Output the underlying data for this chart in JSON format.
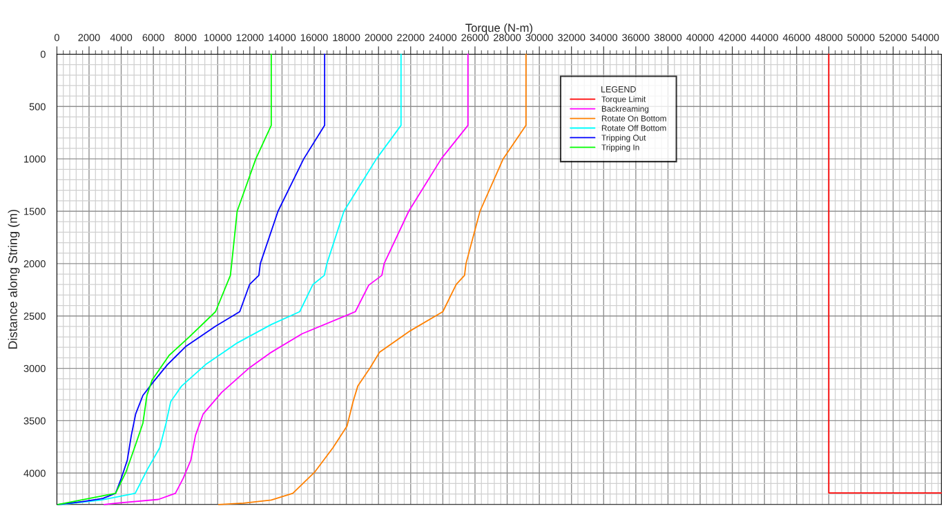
{
  "chart_data": {
    "type": "line",
    "xlabel": "Torque (N-m)",
    "ylabel": "Distance along String (m)",
    "legend_title": "LEGEND",
    "legend": "top right",
    "grid": true,
    "xlim": [
      0,
      55000
    ],
    "xticks": [
      0,
      2000,
      4000,
      6000,
      8000,
      10000,
      12000,
      14000,
      16000,
      18000,
      20000,
      22000,
      24000,
      26000,
      28000,
      30000,
      32000,
      34000,
      36000,
      38000,
      40000,
      42000,
      44000,
      46000,
      48000,
      50000,
      52000,
      54000
    ],
    "ylim": [
      4300,
      0
    ],
    "yticks": [
      0,
      500,
      1000,
      1500,
      2000,
      2500,
      3000,
      3500,
      4000
    ],
    "series": [
      {
        "name": "Torque Limit",
        "color": "#ff0000",
        "x": [
          48000,
          48000,
          55000
        ],
        "values": [
          0,
          4190,
          4190
        ]
      },
      {
        "name": "Backreaming",
        "color": "#ff00ff",
        "x": [
          25560,
          25560,
          23900,
          21880,
          20350,
          20210,
          19390,
          18560,
          15250,
          13330,
          11980,
          10250,
          9100,
          8620,
          8330,
          7850,
          7370,
          6310,
          3710,
          2940
        ],
        "values": [
          0,
          680,
          1000,
          1500,
          2000,
          2112,
          2206,
          2459,
          2670,
          2847,
          2994,
          3229,
          3435,
          3640,
          3876,
          4052,
          4193,
          4252,
          4287,
          4300
        ]
      },
      {
        "name": "Rotate On Bottom",
        "color": "#ff8000",
        "x": [
          29170,
          29170,
          27750,
          26310,
          25440,
          25350,
          24830,
          24000,
          21980,
          20060,
          19480,
          18710,
          18420,
          18040,
          17170,
          16020,
          14670,
          13330,
          11600,
          10060
        ],
        "values": [
          0,
          680,
          1000,
          1500,
          2000,
          2112,
          2200,
          2459,
          2641,
          2847,
          2994,
          3170,
          3317,
          3552,
          3758,
          3993,
          4193,
          4258,
          4287,
          4300
        ]
      },
      {
        "name": "Rotate Off Bottom",
        "color": "#00ffff",
        "x": [
          21400,
          21400,
          19870,
          17850,
          16790,
          16630,
          15920,
          15100,
          13330,
          11210,
          9250,
          7750,
          7080,
          6790,
          6400,
          5630,
          4870,
          2750,
          250
        ],
        "values": [
          0,
          680,
          1000,
          1500,
          2000,
          2112,
          2200,
          2459,
          2582,
          2758,
          2964,
          3170,
          3317,
          3523,
          3758,
          3964,
          4193,
          4258,
          4300
        ]
      },
      {
        "name": "Tripping Out",
        "color": "#0000ff",
        "x": [
          16650,
          16650,
          15350,
          13750,
          12650,
          12560,
          11980,
          11370,
          9870,
          8040,
          6880,
          6020,
          5350,
          4900,
          4630,
          4380,
          4000,
          3650,
          2850,
          1600,
          60
        ],
        "values": [
          0,
          680,
          1000,
          1500,
          2000,
          2112,
          2200,
          2459,
          2597,
          2788,
          2964,
          3126,
          3258,
          3435,
          3640,
          3876,
          4052,
          4193,
          4243,
          4272,
          4300
        ]
      },
      {
        "name": "Tripping In",
        "color": "#00ff00",
        "x": [
          13330,
          13330,
          12370,
          11210,
          10870,
          10790,
          9865,
          8230,
          6980,
          5920,
          5600,
          5350,
          4830,
          4290,
          3650,
          60
        ],
        "values": [
          0,
          680,
          1000,
          1500,
          2000,
          2112,
          2459,
          2700,
          2876,
          3111,
          3258,
          3523,
          3758,
          3993,
          4193,
          4300
        ]
      }
    ]
  }
}
